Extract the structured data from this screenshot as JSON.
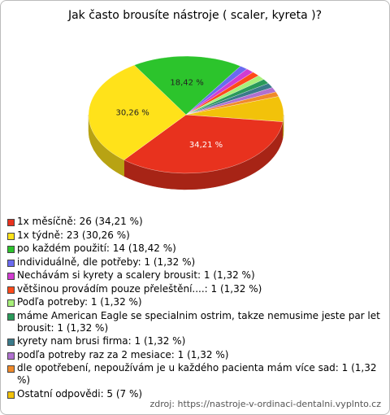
{
  "chart_data": {
    "type": "pie",
    "title": "Jak často brousíte nástroje ( scaler, kyreta )?",
    "categories": [
      "1x měsíčně: 26 (34,21 %)",
      "1x týdně: 23 (30,26 %)",
      "po každém použití: 14 (18,42 %)",
      "individuálně, dle potřeby: 1 (1,32 %)",
      "Nechávám si kyrety a scalery brousit: 1 (1,32 %)",
      "většinou provádím pouze přeleštění....: 1 (1,32 %)",
      "Podľa potreby: 1 (1,32 %)",
      "máme American Eagle se specialnim ostrim, takze nemusime jeste par let brousit: 1 (1,32 %)",
      "kyrety nam brusi firma: 1 (1,32 %)",
      "podľa potreby raz za 2 mesiace: 1 (1,32 %)",
      "dle opotřebení, nepoužívám je u každého pacienta mám více sad: 1 (1,32 %)",
      "Ostatní odpovědi: 5 (7 %)"
    ],
    "values": [
      34.21,
      30.26,
      18.42,
      1.32,
      1.32,
      1.32,
      1.32,
      1.32,
      1.32,
      1.32,
      1.32,
      7
    ],
    "value_labels": [
      "34,21 %",
      "30,26 %",
      "18,42 %",
      null,
      null,
      null,
      null,
      null,
      null,
      null,
      null,
      null
    ],
    "colors": [
      "#e8321e",
      "#ffe21a",
      "#2cc42c",
      "#6a6af0",
      "#d23cd2",
      "#ff4a1a",
      "#a8f07a",
      "#2a9a5a",
      "#3a7a8a",
      "#b070d0",
      "#f08a2a",
      "#f2c20a"
    ],
    "source": "zdroj: https://nastroje-v-ordinaci-dentalni.vyplnto.cz"
  }
}
